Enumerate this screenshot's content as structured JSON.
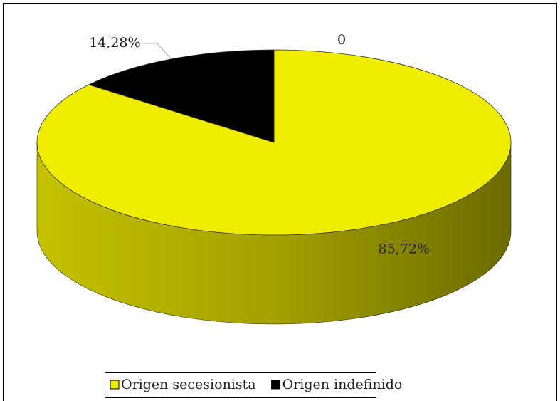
{
  "chart_data": {
    "type": "pie",
    "categories": [
      "Origen secesionista",
      "Origen indefinido",
      null
    ],
    "values": [
      85.72,
      14.28,
      0
    ],
    "value_labels": [
      "85,72%",
      "14,28%",
      "0"
    ],
    "colors": [
      "#f0ec00",
      "#000000",
      "#7f7f7f"
    ],
    "legend": "bottom"
  }
}
